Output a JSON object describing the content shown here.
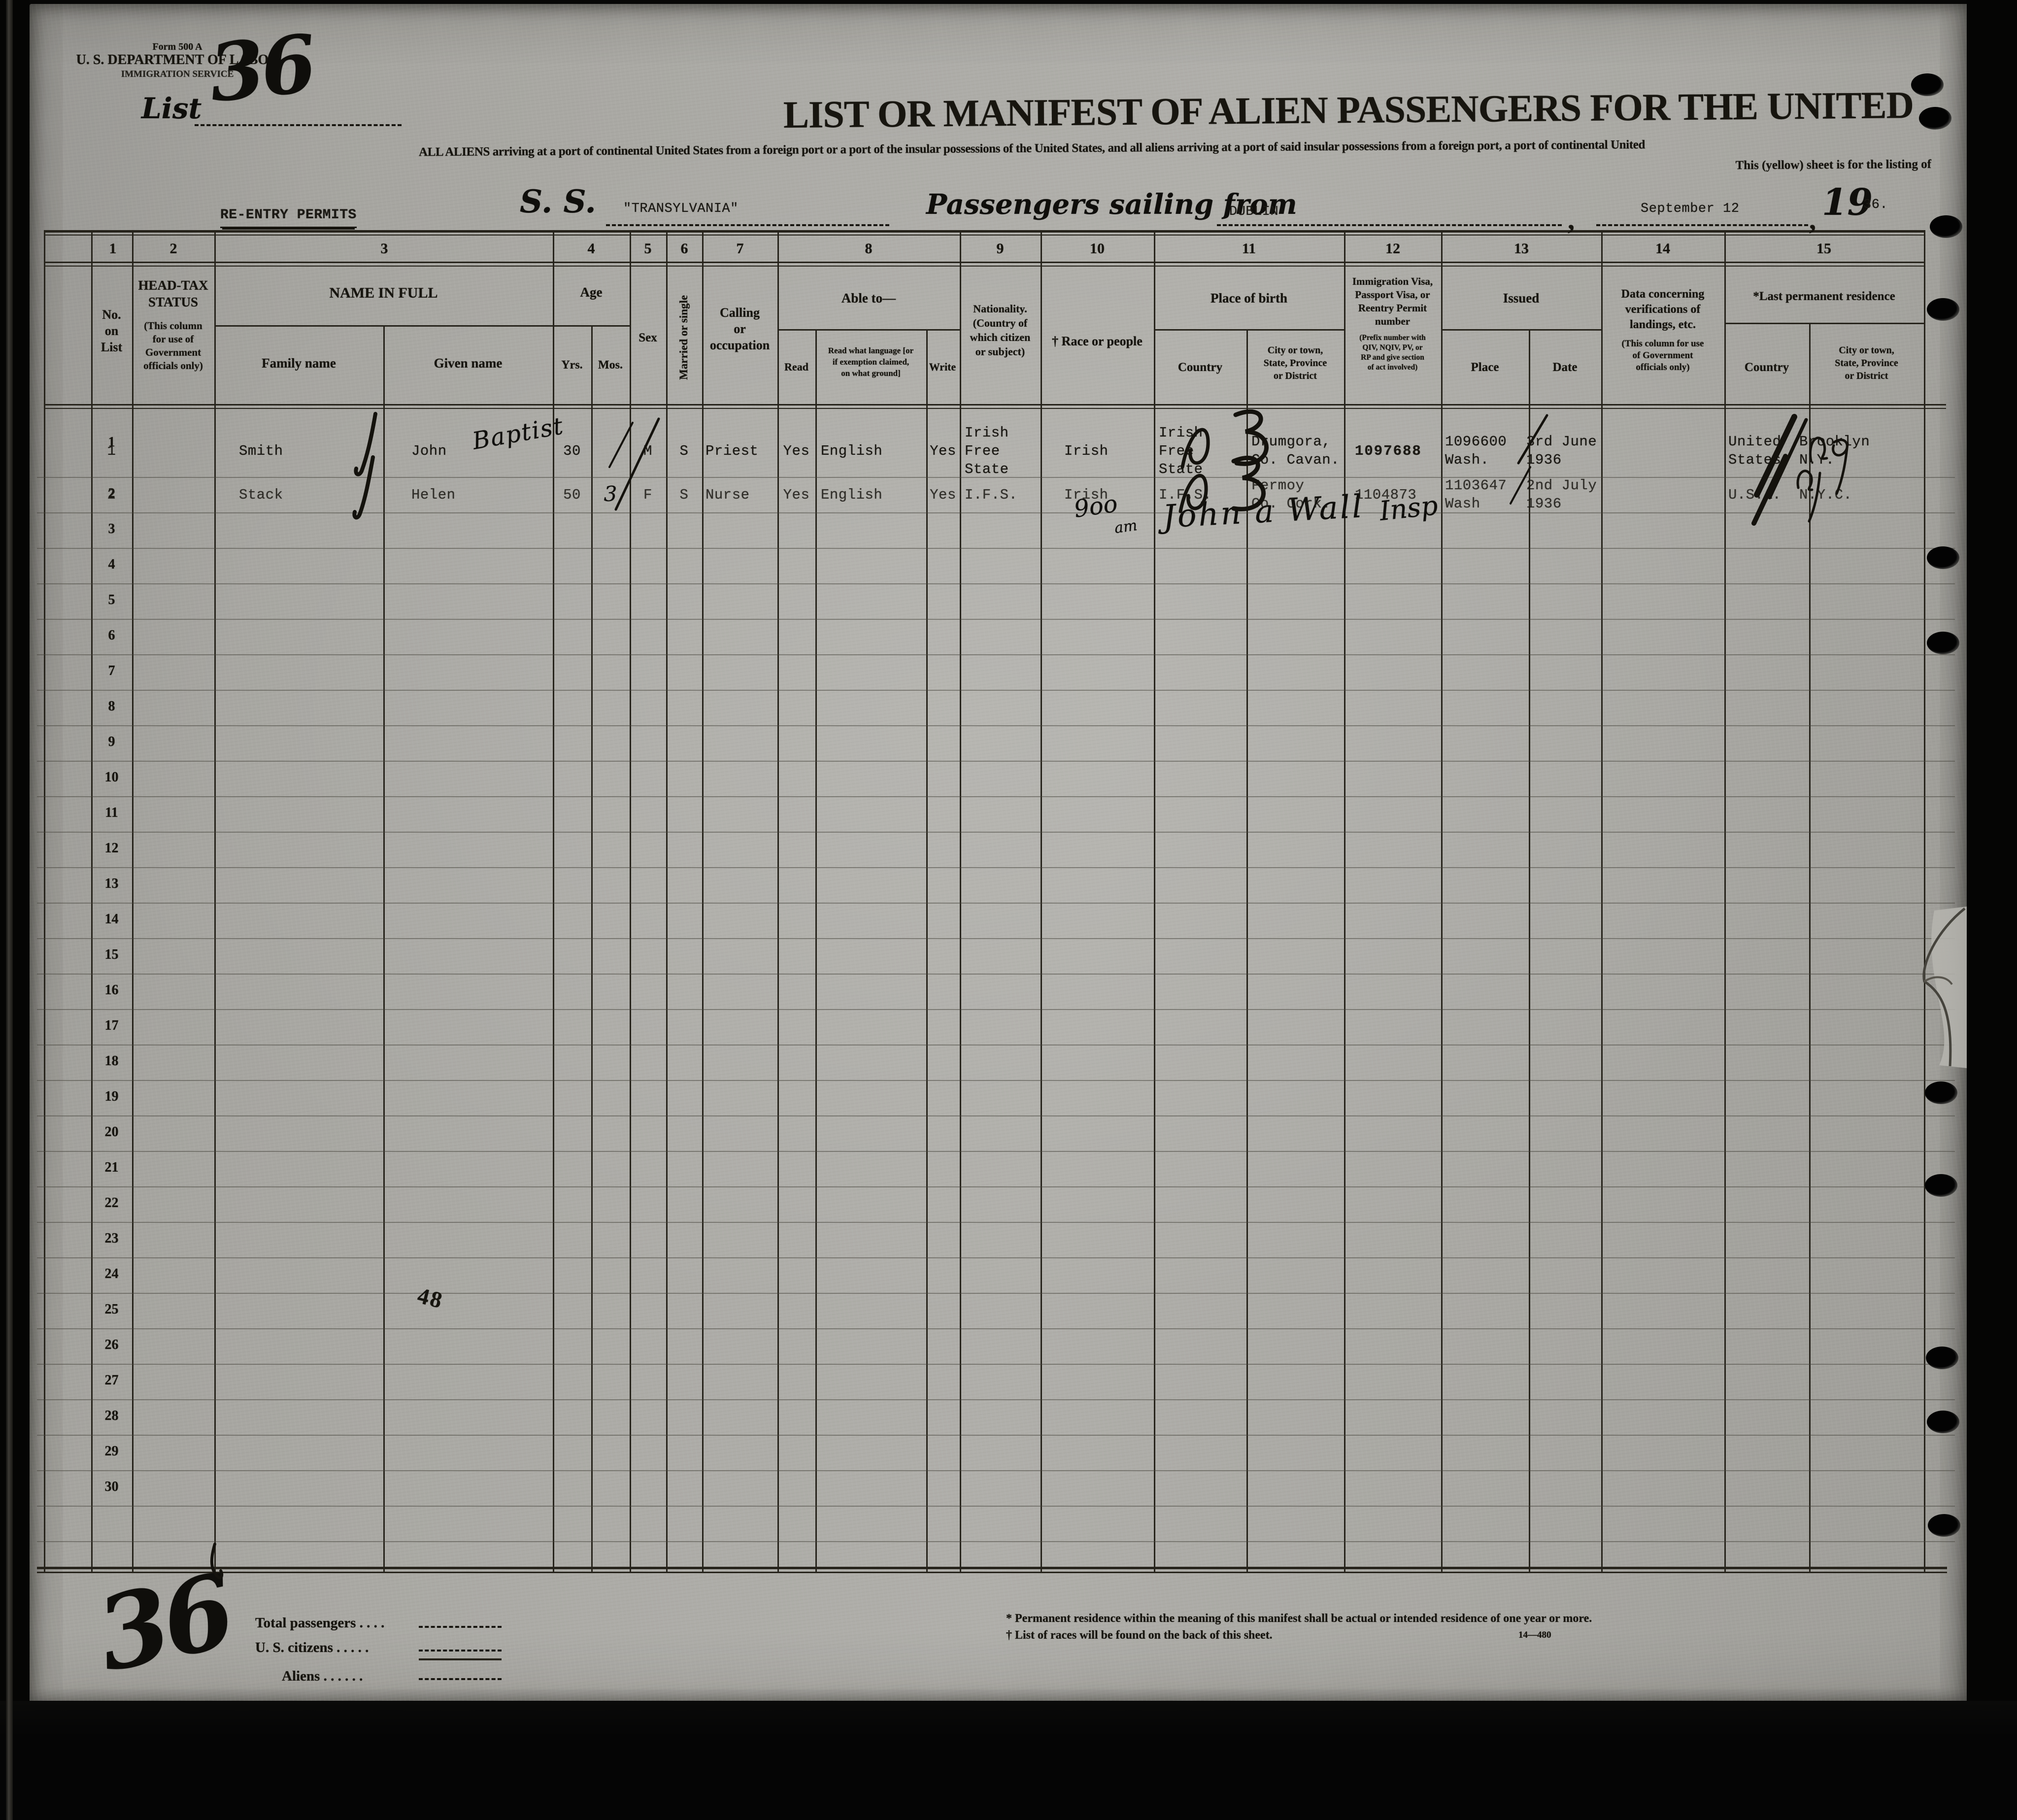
{
  "form": {
    "form_no": "Form 500 A",
    "department": "U. S. DEPARTMENT OF LABOR",
    "service": "IMMIGRATION SERVICE",
    "list_label": "List",
    "title": "LIST OR MANIFEST OF ALIEN PASSENGERS FOR THE UNITED",
    "subtitle_line1": "ALL ALIENS arriving at a port of continental United States from a foreign port or a port of the insular possessions of the United States, and all aliens arriving at a port of said insular possessions from a foreign port, a port of continental United",
    "subtitle_line2": "This (yellow) sheet is for the listing of"
  },
  "voyage": {
    "reentry_permits": "RE-ENTRY PERMITS",
    "ss_label": "S. S.",
    "ship_name": "\"TRANSYLVANIA\"",
    "sailing_label": "Passengers sailing from",
    "port": "DUBLIN",
    "comma": ",",
    "date": "September 12",
    "year_printed": "19",
    "year_typed": "36."
  },
  "table": {
    "col_numbers": [
      "1",
      "2",
      "3",
      "4",
      "5",
      "6",
      "7",
      "8",
      "9",
      "10",
      "11",
      "12",
      "13",
      "14",
      "15"
    ],
    "headers": {
      "no_on_list": "No.\non\nList",
      "head_tax": "HEAD-TAX\nSTATUS",
      "head_tax_note": "(This column\nfor use of\nGovernment\nofficials only)",
      "name_in_full": "NAME IN FULL",
      "family_name": "Family name",
      "given_name": "Given name",
      "age": "Age",
      "yrs": "Yrs.",
      "mos": "Mos.",
      "sex": "Sex",
      "married_single": "Married or single",
      "calling": "Calling\nor\noccupation",
      "able_to": "Able to—",
      "read": "Read",
      "read_language": "Read what language [or\nif exemption claimed,\non what ground]",
      "write": "Write",
      "nationality": "Nationality.\n(Country of\nwhich citizen\nor subject)",
      "race": "† Race or people",
      "place_of_birth": "Place of birth",
      "birth_country": "Country",
      "birth_city": "City or town,\nState, Province\nor District",
      "visa": "Immigration Visa,\nPassport Visa, or\nReentry Permit\nnumber",
      "visa_note": "(Prefix number with\nQIV, NQIV, PV, or\nRP and give section\nof act involved)",
      "issued": "Issued",
      "issued_place": "Place",
      "issued_date": "Date",
      "verifications": "Data concerning\nverifications of\nlandings, etc.",
      "verifications_note": "(This column for use\nof Government\nofficials only)",
      "last_residence": "*Last permanent residence",
      "res_country": "Country",
      "res_city": "City or town,\nState, Province\nor District"
    },
    "row_numbers": [
      "1",
      "2",
      "3",
      "4",
      "5",
      "6",
      "7",
      "8",
      "9",
      "10",
      "11",
      "12",
      "13",
      "14",
      "15",
      "16",
      "17",
      "18",
      "19",
      "20",
      "21",
      "22",
      "23",
      "24",
      "25",
      "26",
      "27",
      "28",
      "29",
      "30"
    ]
  },
  "passengers": [
    {
      "no": "1",
      "family_name": "Smith",
      "given_name": "John",
      "age_yrs": "30",
      "sex": "M",
      "married_or_single": "S",
      "calling": "Priest",
      "read": "Yes",
      "read_language": "English",
      "write": "Yes",
      "nationality": "Irish\nFree\nState",
      "race": "Irish",
      "birth_country": "Irish\nFree\nState",
      "birth_city": "Drumgora,\nCo. Cavan.",
      "visa_number": "1097688",
      "issued_place": "1096600\nWash.",
      "issued_date": "3rd June\n1936",
      "residence_country": "United\nStates",
      "residence_city": "Brooklyn\nN.Y."
    },
    {
      "no": "2",
      "family_name": "Stack",
      "given_name": "Helen",
      "age_yrs": "50",
      "age_mos_hand": "3",
      "sex": "F",
      "married_or_single": "S",
      "calling": "Nurse",
      "read": "Yes",
      "read_language": "English",
      "write": "Yes",
      "nationality": "I.F.S.",
      "race": "Irish",
      "birth_country": "I.F.S.",
      "birth_city": "Fermoy\nCo. Cork.",
      "visa_number": "1104873",
      "issued_place": "1103647\nWash",
      "issued_date": "2nd July\n1936",
      "residence_country": "U.S.A.",
      "residence_city": "N.Y.C."
    }
  ],
  "annotations": {
    "list_number_hand": "36",
    "given_name_hand_row1": "Baptist",
    "time_note_big": "9oo",
    "time_note_small": "am",
    "inspector_signature": "John a Wall",
    "inspector_title": "Insp",
    "stamp_48": "48",
    "bottom_list_number": "36"
  },
  "totals": {
    "total_passengers_label": "Total passengers  .   .   .   .",
    "us_citizens_label": "U. S. citizens   .   .   .   .   .",
    "aliens_label": "Aliens .   .   .   .   .   ."
  },
  "footnotes": {
    "line1": "* Permanent residence within the meaning of this manifest shall be actual or intended residence of one year or more.",
    "line2": "† List of races will be found on the back of this sheet.",
    "form_code": "14—480"
  }
}
